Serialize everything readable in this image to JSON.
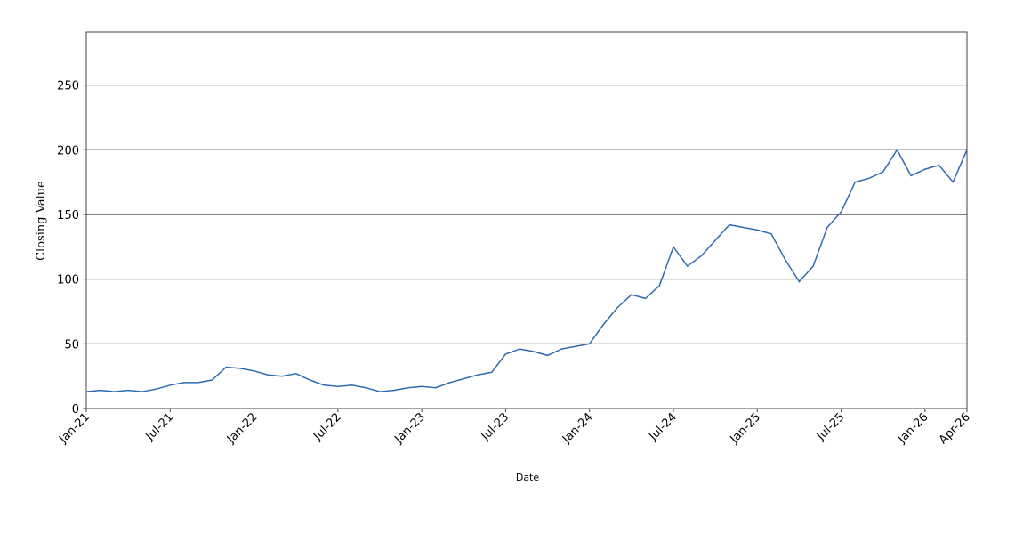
{
  "chart_data": {
    "type": "line",
    "x_label": "Date",
    "y_label": "Closing Value",
    "x": [
      "2021-01",
      "2021-02",
      "2021-03",
      "2021-04",
      "2021-05",
      "2021-06",
      "2021-07",
      "2021-08",
      "2021-09",
      "2021-10",
      "2021-11",
      "2021-12",
      "2022-01",
      "2022-02",
      "2022-03",
      "2022-04",
      "2022-05",
      "2022-06",
      "2022-07",
      "2022-08",
      "2022-09",
      "2022-10",
      "2022-11",
      "2022-12",
      "2023-01",
      "2023-02",
      "2023-03",
      "2023-04",
      "2023-05",
      "2023-06",
      "2023-07",
      "2023-08",
      "2023-09",
      "2023-10",
      "2023-11",
      "2023-12",
      "2024-01",
      "2024-02",
      "2024-03",
      "2024-04",
      "2024-05",
      "2024-06",
      "2024-07",
      "2024-08",
      "2024-09",
      "2024-10",
      "2024-11",
      "2024-12",
      "2025-01",
      "2025-02",
      "2025-03",
      "2025-04",
      "2025-05",
      "2025-06",
      "2025-07",
      "2025-08",
      "2025-09",
      "2025-10",
      "2025-11",
      "2025-12",
      "2026-01",
      "2026-02",
      "2026-03",
      "2026-04"
    ],
    "series": [
      {
        "name": "Closing Value",
        "color": "#2f6bb0",
        "values": [
          13,
          14,
          13,
          14,
          13,
          15,
          18,
          20,
          20,
          22,
          32,
          31,
          29,
          26,
          25,
          27,
          22,
          18,
          17,
          18,
          16,
          13,
          14,
          16,
          17,
          16,
          20,
          23,
          26,
          28,
          42,
          46,
          44,
          41,
          46,
          48,
          50,
          65,
          78,
          88,
          85,
          95,
          125,
          110,
          118,
          130,
          142,
          140,
          138,
          135,
          115,
          98,
          110,
          140,
          152,
          175,
          178,
          183,
          200,
          180,
          185,
          188,
          175,
          200
        ]
      }
    ],
    "xlim": [
      "2021-01",
      "2026-04"
    ],
    "xticks": [
      {
        "value": "2021-01",
        "label": "Jan-21"
      },
      {
        "value": "2021-07",
        "label": "Jul-21"
      },
      {
        "value": "2022-01",
        "label": "Jan-22"
      },
      {
        "value": "2022-07",
        "label": "Jul-22"
      },
      {
        "value": "2023-01",
        "label": "Jan-23"
      },
      {
        "value": "2023-07",
        "label": "Jul-23"
      },
      {
        "value": "2024-01",
        "label": "Jan-24"
      },
      {
        "value": "2024-07",
        "label": "Jul-24"
      },
      {
        "value": "2025-01",
        "label": "Jan-25"
      },
      {
        "value": "2025-07",
        "label": "Jul-25"
      },
      {
        "value": "2026-01",
        "label": "Jan-26"
      },
      {
        "value": "2026-04",
        "label": "Apr-26"
      }
    ],
    "ylim": [
      0,
      291
    ],
    "yticks": [
      0,
      50,
      100,
      150,
      200,
      250
    ],
    "grid": true
  }
}
